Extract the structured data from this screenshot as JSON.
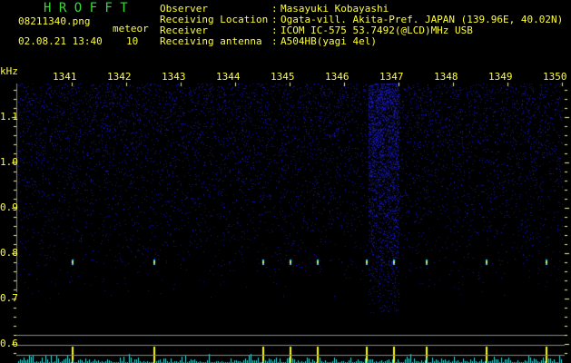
{
  "header": {
    "logo": "H R O F F T",
    "filename": "08211340.png",
    "datetime": "02.08.21 13:40",
    "meteor_label": "meteor",
    "meteor_count": "10",
    "info": [
      {
        "label": "Observer",
        "value": "Masayuki Kobayashi"
      },
      {
        "label": "Receiving Location",
        "value": "Ogata-vill. Akita-Pref. JAPAN (139.96E, 40.02N)"
      },
      {
        "label": "Receiver",
        "value": "ICOM IC-575 53.7492(@LCD)MHz USB"
      },
      {
        "label": "Receiving antenna",
        "value": "A504HB(yagi 4el)"
      }
    ]
  },
  "chart_data": {
    "type": "heatmap",
    "ylabel": "kHz",
    "x_ticks": [
      "1341",
      "1342",
      "1343",
      "1344",
      "1345",
      "1346",
      "1347",
      "1348",
      "1349",
      "1350"
    ],
    "y_ticks": [
      "1.1",
      "1.0",
      "0.9",
      "0.8",
      "0.7",
      "0.6"
    ],
    "xlim": [
      1340.0,
      1350.0
    ],
    "ylim": [
      0.58,
      1.2
    ],
    "colors": {
      "background": "#000000",
      "noise": "#1a1aa0",
      "labels": "#ffff33",
      "histogram": "#33dddd",
      "meteor_bar": "#ffff00"
    },
    "meteor_echoes_time": [
      1341.0,
      1342.5,
      1344.5,
      1346.4,
      1347.5,
      1349.7,
      1345.5,
      1346.9,
      1348.6,
      1345.0
    ],
    "echo_frequency_khz": 0.78
  }
}
